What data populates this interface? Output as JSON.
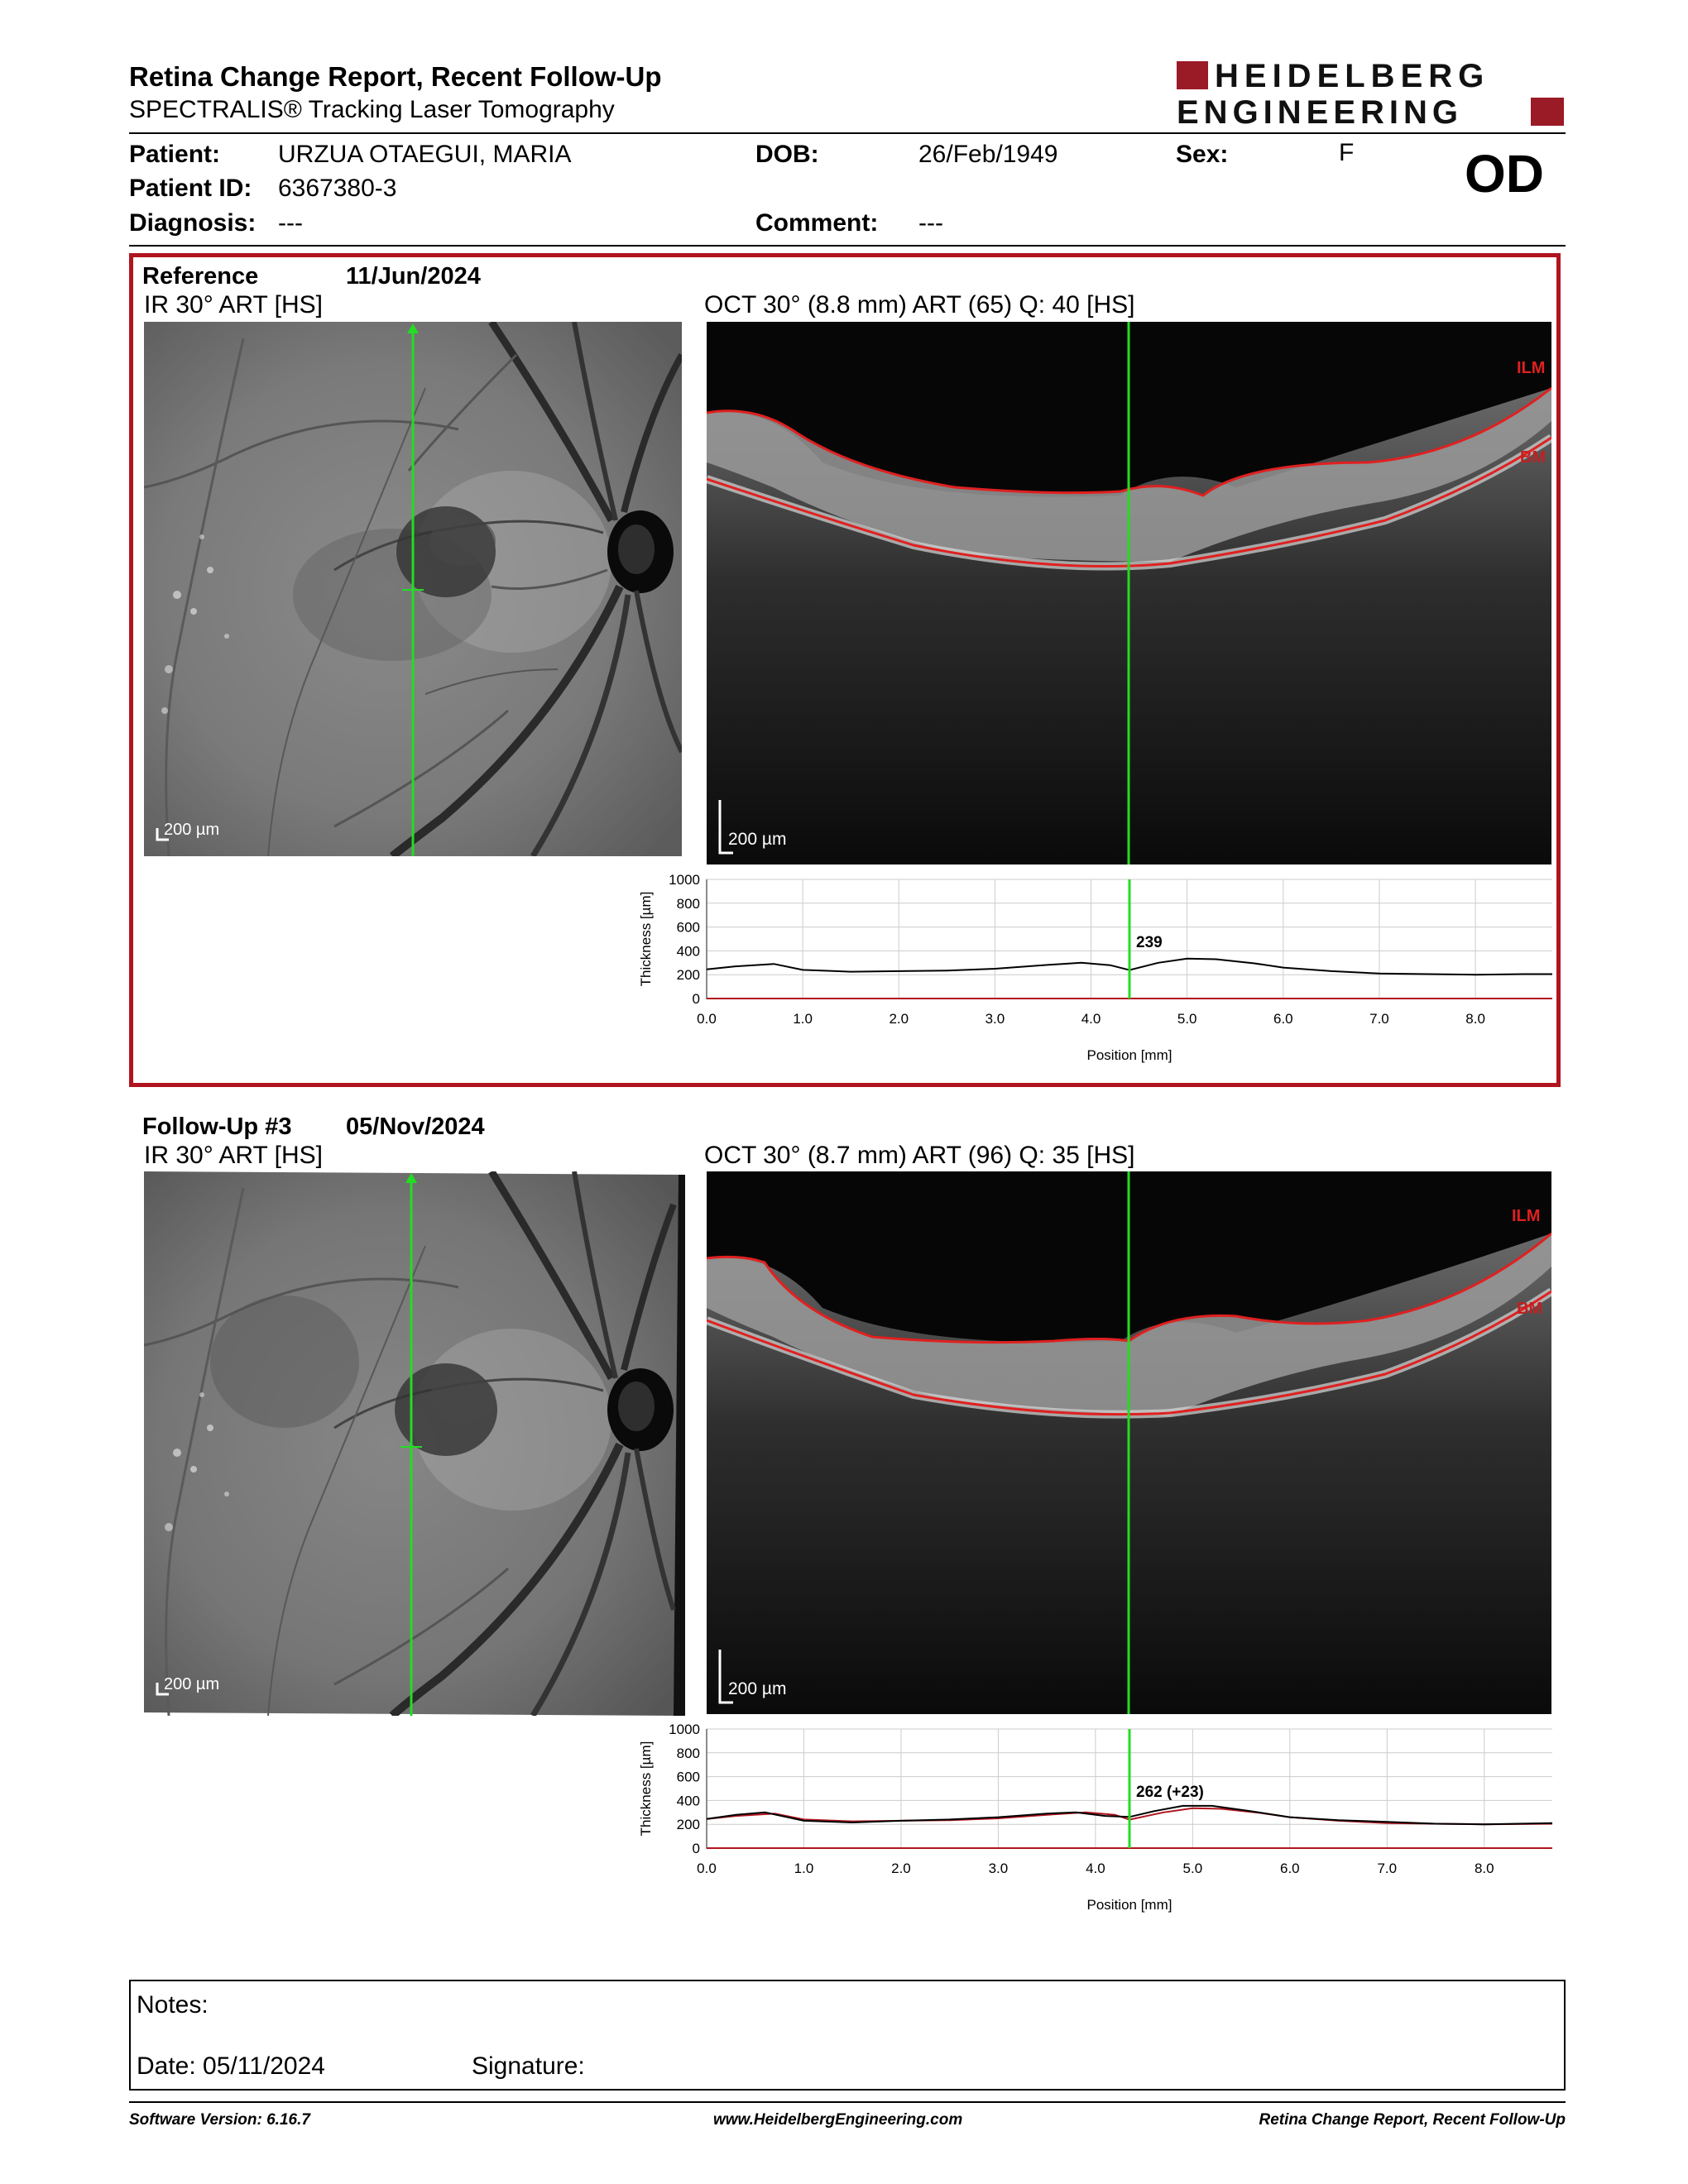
{
  "header": {
    "title": "Retina Change Report, Recent Follow-Up",
    "subtitle": "SPECTRALIS® Tracking Laser Tomography",
    "logo_line1": "HEIDELBERG",
    "logo_line2": "ENGINEERING",
    "eye": "OD"
  },
  "patient": {
    "patient_label": "Patient:",
    "patient_value": "URZUA OTAEGUI, MARIA",
    "id_label": "Patient ID:",
    "id_value": "6367380-3",
    "diagnosis_label": "Diagnosis:",
    "diagnosis_value": "---",
    "dob_label": "DOB:",
    "dob_value": "26/Feb/1949",
    "comment_label": "Comment:",
    "comment_value": "---",
    "sex_label": "Sex:",
    "sex_value": "F"
  },
  "reference": {
    "label": "Reference",
    "date": "11/Jun/2024",
    "ir_caption": "IR 30° ART [HS]",
    "oct_caption": "OCT 30° (8.8 mm) ART (65) Q: 40 [HS]",
    "ir_scale": "200 µm",
    "oct_scale": "200 µm",
    "ilm_label": "ILM",
    "bm_label": "BM"
  },
  "followup": {
    "label": "Follow-Up #3",
    "date": "05/Nov/2024",
    "ir_caption": "IR 30° ART [HS]",
    "oct_caption": "OCT 30° (8.7 mm) ART (96) Q: 35 [HS]",
    "ir_scale": "200 µm",
    "oct_scale": "200 µm",
    "ilm_label": "ILM",
    "bm_label": "BM"
  },
  "chart_data": [
    {
      "type": "line",
      "xlabel": "Position [mm]",
      "ylabel": "Thickness [µm]",
      "xlim": [
        0,
        8.8
      ],
      "ylim": [
        0,
        1000
      ],
      "yticks": [
        0,
        200,
        400,
        600,
        800,
        1000
      ],
      "xticks": [
        0.0,
        1.0,
        2.0,
        3.0,
        4.0,
        5.0,
        6.0,
        7.0,
        8.0
      ],
      "xtick_labels": [
        "0.0",
        "1.0",
        "2.0",
        "3.0",
        "4.0",
        "5.0",
        "6.0",
        "7.0",
        "8.0"
      ],
      "cursor_x": 4.4,
      "annotation": "239",
      "series": [
        {
          "color": "#000000",
          "x": [
            0,
            0.3,
            0.7,
            1.0,
            1.5,
            2.0,
            2.5,
            3.0,
            3.5,
            3.9,
            4.2,
            4.4,
            4.7,
            5.0,
            5.3,
            5.7,
            6.0,
            6.5,
            7.0,
            7.5,
            8.0,
            8.5,
            8.8
          ],
          "y": [
            245,
            270,
            290,
            240,
            225,
            230,
            235,
            250,
            280,
            300,
            280,
            239,
            300,
            335,
            330,
            295,
            260,
            230,
            210,
            205,
            200,
            205,
            205
          ]
        }
      ]
    },
    {
      "type": "line",
      "xlabel": "Position [mm]",
      "ylabel": "Thickness [µm]",
      "xlim": [
        0,
        8.7
      ],
      "ylim": [
        0,
        1000
      ],
      "yticks": [
        0,
        200,
        400,
        600,
        800,
        1000
      ],
      "xticks": [
        0.0,
        1.0,
        2.0,
        3.0,
        4.0,
        5.0,
        6.0,
        7.0,
        8.0
      ],
      "xtick_labels": [
        "0.0",
        "1.0",
        "2.0",
        "3.0",
        "4.0",
        "5.0",
        "6.0",
        "7.0",
        "8.0"
      ],
      "cursor_x": 4.35,
      "annotation": "262 (+23)",
      "series": [
        {
          "color": "#000000",
          "x": [
            0,
            0.3,
            0.6,
            1.0,
            1.5,
            2.0,
            2.5,
            3.0,
            3.5,
            3.8,
            4.1,
            4.35,
            4.6,
            4.9,
            5.2,
            5.6,
            6.0,
            6.5,
            7.0,
            7.5,
            8.0,
            8.7
          ],
          "y": [
            245,
            280,
            300,
            230,
            215,
            230,
            240,
            260,
            290,
            300,
            270,
            262,
            310,
            355,
            355,
            310,
            260,
            235,
            220,
            205,
            200,
            210
          ]
        },
        {
          "color": "#b0141e",
          "x": [
            0,
            0.3,
            0.7,
            1.0,
            1.5,
            2.0,
            2.5,
            3.0,
            3.5,
            3.9,
            4.2,
            4.35,
            4.7,
            5.0,
            5.3,
            5.7,
            6.0,
            6.5,
            7.0,
            7.5,
            8.0,
            8.7
          ],
          "y": [
            245,
            270,
            290,
            240,
            225,
            230,
            235,
            250,
            280,
            300,
            280,
            239,
            300,
            335,
            330,
            295,
            260,
            230,
            210,
            205,
            200,
            205
          ]
        }
      ]
    }
  ],
  "notes": {
    "notes_label": "Notes:",
    "date_label": "Date: 05/11/2024",
    "signature_label": "Signature:"
  },
  "footer": {
    "software": "Software Version: 6.16.7",
    "website": "www.HeidelbergEngineering.com",
    "report_name": "Retina Change Report, Recent Follow-Up"
  }
}
